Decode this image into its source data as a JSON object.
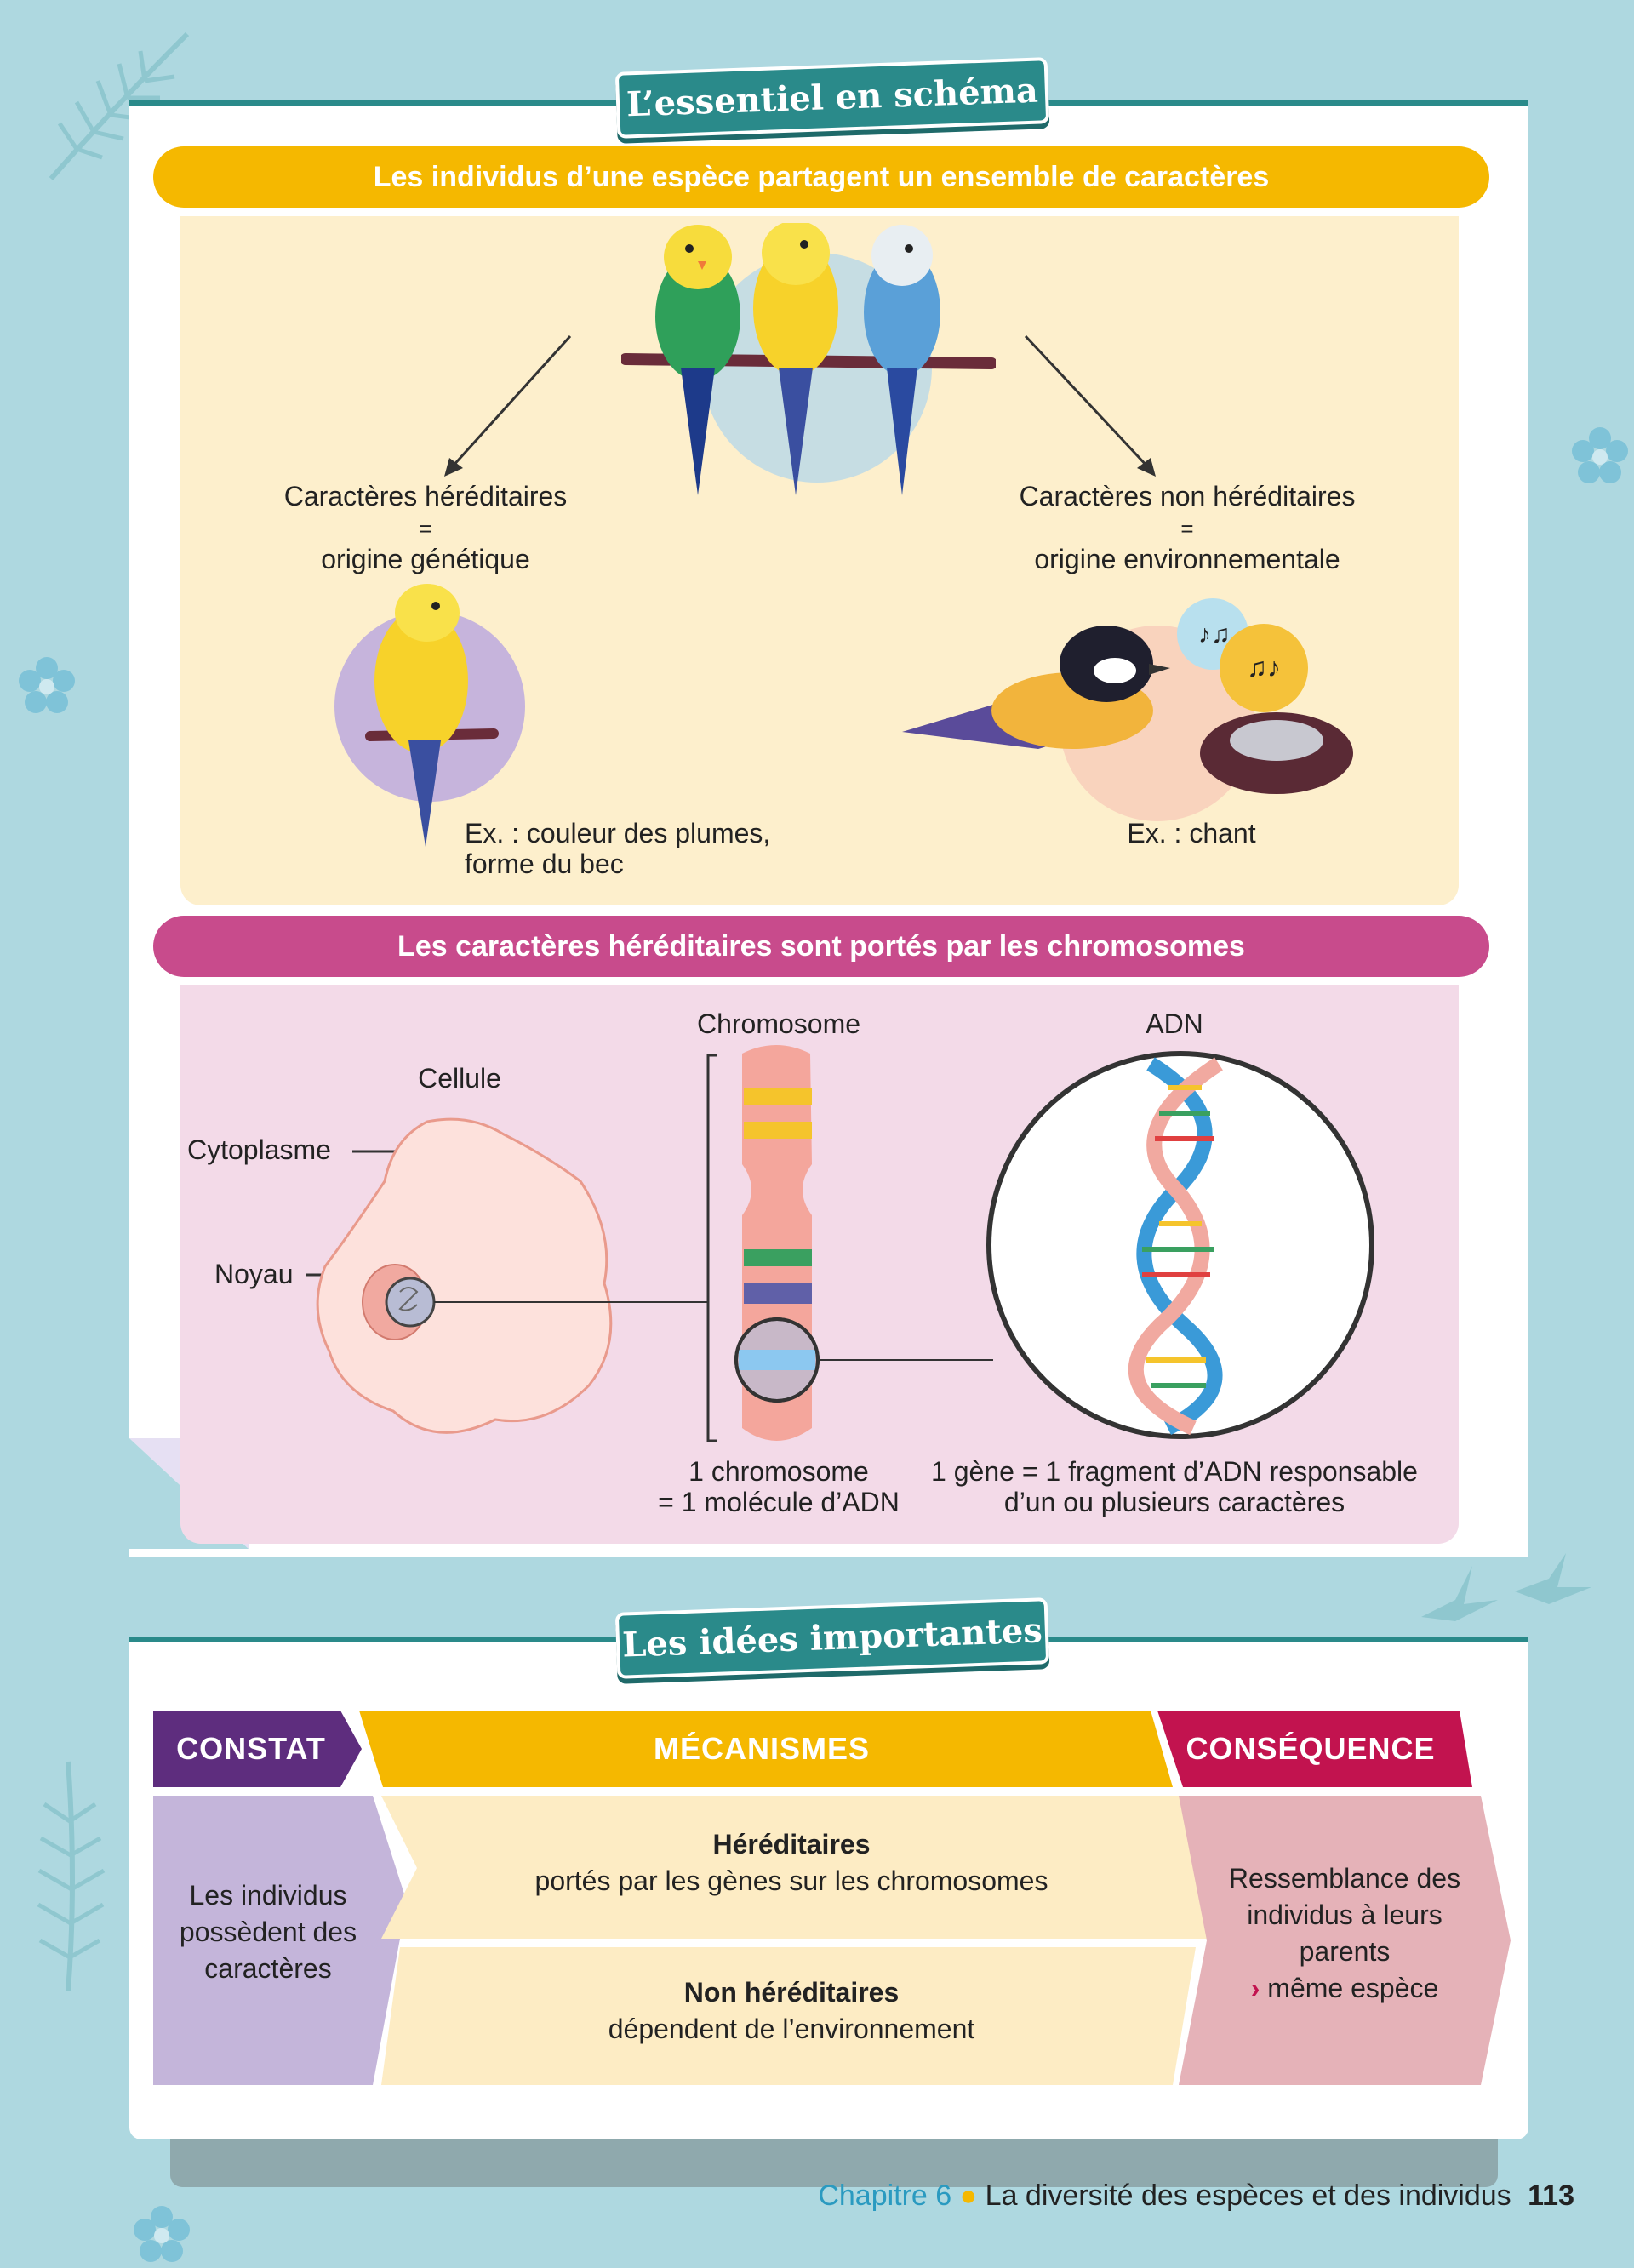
{
  "schema": {
    "tab_title": "L’essentiel en schéma",
    "band1": "Les individus d’une espèce partagent un ensemble de caractères",
    "hered_line1": "Caractères héréditaires",
    "hered_eq": "=",
    "hered_line2": "origine génétique",
    "nonhered_line1": "Caractères non héréditaires",
    "nonhered_eq": "=",
    "nonhered_line2": "origine environnementale",
    "ex1_line1": "Ex. : couleur des plumes,",
    "ex1_line2": "forme du bec",
    "ex2": "Ex. : chant",
    "band2": "Les caractères héréditaires sont portés par les chromosomes",
    "chromosome_label": "Chromosome",
    "adn_label": "ADN",
    "cellule_label": "Cellule",
    "cytoplasme_label": "Cytoplasme",
    "noyau_label": "Noyau",
    "chrom_caption1": "1 chromosome",
    "chrom_caption2": "= 1 molécule d’ADN",
    "gene_caption1": "1 gène = 1 fragment d’ADN responsable",
    "gene_caption2": "d’un ou plusieurs caractères"
  },
  "ideas": {
    "tab_title": "Les idées importantes",
    "constat_header": "CONSTAT",
    "mecanismes_header": "MÉCANISMES",
    "consequence_header": "CONSÉQUENCE",
    "constat_text": [
      "Les individus",
      "possèdent des",
      "caractères"
    ],
    "hered_title": "Héréditaires",
    "hered_text": "portés par les gènes sur les chromosomes",
    "nonhered_title": "Non héréditaires",
    "nonhered_text": "dépendent de l’environnement",
    "consequence_text": [
      "Ressemblance des",
      "individus à leurs",
      "parents"
    ],
    "consequence_arrow": "›",
    "consequence_last": "même espèce"
  },
  "footer": {
    "chapter": "Chapitre 6",
    "title": "La diversité des espèces et des individus",
    "page": "113"
  },
  "colors": {
    "background": "#aed8e0",
    "teal": "#2a8a8a",
    "yellow": "#f5b800",
    "magenta": "#c84b8c",
    "purple": "#5e2d7e",
    "crimson": "#c2134f"
  }
}
